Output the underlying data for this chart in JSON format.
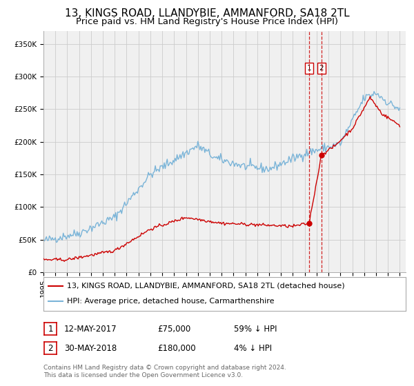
{
  "title": "13, KINGS ROAD, LLANDYBIE, AMMANFORD, SA18 2TL",
  "subtitle": "Price paid vs. HM Land Registry's House Price Index (HPI)",
  "footer": "Contains HM Land Registry data © Crown copyright and database right 2024.\nThis data is licensed under the Open Government Licence v3.0.",
  "legend_line1": "13, KINGS ROAD, LLANDYBIE, AMMANFORD, SA18 2TL (detached house)",
  "legend_line2": "HPI: Average price, detached house, Carmarthenshire",
  "sale1_date": 2017.36,
  "sale1_price": 75000,
  "sale1_label": "1",
  "sale1_date_text": "12-MAY-2017",
  "sale1_price_text": "£75,000",
  "sale1_pct_text": "59% ↓ HPI",
  "sale2_date": 2018.41,
  "sale2_price": 180000,
  "sale2_label": "2",
  "sale2_date_text": "30-MAY-2018",
  "sale2_price_text": "£180,000",
  "sale2_pct_text": "4% ↓ HPI",
  "hpi_color": "#7ab4d8",
  "price_color": "#cc0000",
  "vline_color": "#cc0000",
  "ylim_min": 0,
  "ylim_max": 370000,
  "xlim_min": 1995.0,
  "xlim_max": 2025.5,
  "background_color": "#f0f0f0",
  "grid_color": "#cccccc",
  "title_fontsize": 11,
  "subtitle_fontsize": 9.5,
  "tick_fontsize": 7.5,
  "legend_fontsize": 8,
  "annotation_fontsize": 8.5,
  "footer_fontsize": 6.5
}
